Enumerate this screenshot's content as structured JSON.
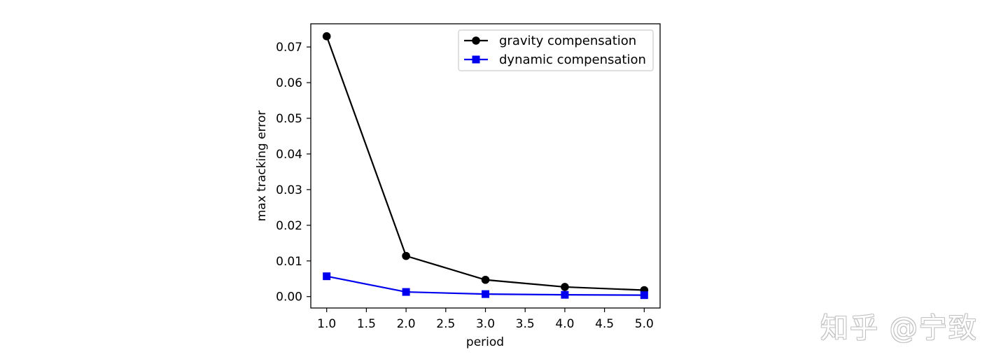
{
  "chart_data": {
    "type": "line",
    "title": "",
    "xlabel": "period",
    "ylabel": "max tracking error",
    "xlim": [
      0.8,
      5.2
    ],
    "ylim": [
      -0.0032,
      0.0765
    ],
    "xticks": [
      "1.0",
      "1.5",
      "2.0",
      "2.5",
      "3.0",
      "3.5",
      "4.0",
      "4.5",
      "5.0"
    ],
    "xtick_values": [
      1.0,
      1.5,
      2.0,
      2.5,
      3.0,
      3.5,
      4.0,
      4.5,
      5.0
    ],
    "yticks": [
      "0.00",
      "0.01",
      "0.02",
      "0.03",
      "0.04",
      "0.05",
      "0.06",
      "0.07"
    ],
    "ytick_values": [
      0.0,
      0.01,
      0.02,
      0.03,
      0.04,
      0.05,
      0.06,
      0.07
    ],
    "grid": false,
    "legend_position": "upper-right",
    "x": [
      1.0,
      2.0,
      3.0,
      4.0,
      5.0
    ],
    "series": [
      {
        "name": "gravity compensation",
        "color": "#000000",
        "marker": "circle",
        "values": [
          0.073,
          0.0114,
          0.0047,
          0.0027,
          0.0018
        ]
      },
      {
        "name": "dynamic compensation",
        "color": "#0000ee",
        "marker": "square",
        "values": [
          0.0057,
          0.0013,
          0.0007,
          0.0005,
          0.0004
        ]
      }
    ]
  },
  "watermark": "知乎 @宁致"
}
